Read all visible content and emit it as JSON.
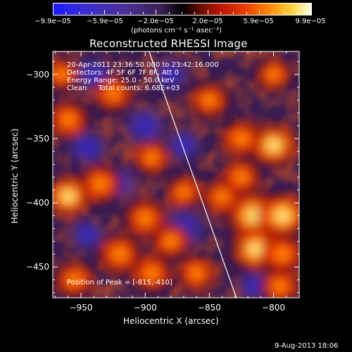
{
  "chart_data": {
    "type": "heatmap",
    "title": "Reconstructed RHESSI Image",
    "xlabel": "Heliocentric X (arcsec)",
    "ylabel": "Heliocentric Y (arcsec)",
    "xlim": [
      -972,
      -780
    ],
    "ylim": [
      -474,
      -282
    ],
    "x_ticks": [
      {
        "value": -950,
        "label": "−950"
      },
      {
        "value": -900,
        "label": "−900"
      },
      {
        "value": -850,
        "label": "−850"
      },
      {
        "value": -800,
        "label": "−800"
      }
    ],
    "y_ticks": [
      {
        "value": -300,
        "label": "−300"
      },
      {
        "value": -350,
        "label": "−350"
      },
      {
        "value": -400,
        "label": "−400"
      },
      {
        "value": -450,
        "label": "−450"
      }
    ],
    "colorbar": {
      "range": [
        -9.9e-05,
        9.9e-05
      ],
      "tick_labels": [
        "−9.9e−05",
        "−5.9e−05",
        "−2.0e−05",
        "2.0e−05",
        "5.9e−05",
        "9.9e−05"
      ],
      "tick_values": [
        -9.9e-05,
        -5.9e-05,
        -2e-05,
        2e-05,
        5.9e-05,
        9.9e-05
      ],
      "units": "(photons cm⁻² s⁻¹ asec⁻²)"
    },
    "annotations": {
      "time_range": "20-Apr-2011 23:36:50.000 to 23:42:16.000",
      "detectors": "Detectors: 4F 5F 6F 7F 8F, Att 0",
      "energy": "Energy Range: 25.0 - 50.0 keV",
      "method": "Clean     Total counts: 6.68E+03",
      "peak": "Position of Peak = [-815,-410]"
    },
    "limb_line": [
      [
        -897,
        -282
      ],
      [
        -829,
        -474
      ]
    ],
    "peak_position": [
      -815,
      -410
    ],
    "sources": [
      {
        "x": -815,
        "y": -410,
        "intensity": 9.9e-05
      },
      {
        "x": -793,
        "y": -410,
        "intensity": 8.5e-05
      },
      {
        "x": -814,
        "y": -436,
        "intensity": 8e-05
      },
      {
        "x": -800,
        "y": -355,
        "intensity": 7.5e-05
      },
      {
        "x": -825,
        "y": -350,
        "intensity": 5.5e-05
      },
      {
        "x": -850,
        "y": -320,
        "intensity": 5e-05
      },
      {
        "x": -840,
        "y": -395,
        "intensity": 5e-05
      },
      {
        "x": -825,
        "y": -380,
        "intensity": 5e-05
      },
      {
        "x": -793,
        "y": -440,
        "intensity": 6e-05
      },
      {
        "x": -795,
        "y": -465,
        "intensity": 5e-05
      },
      {
        "x": -960,
        "y": -395,
        "intensity": 7e-05
      },
      {
        "x": -935,
        "y": -385,
        "intensity": 6e-05
      },
      {
        "x": -960,
        "y": -335,
        "intensity": 5.5e-05
      },
      {
        "x": -925,
        "y": -315,
        "intensity": 5e-05
      },
      {
        "x": -900,
        "y": -412,
        "intensity": 6e-05
      },
      {
        "x": -920,
        "y": -440,
        "intensity": 6.5e-05
      },
      {
        "x": -895,
        "y": -455,
        "intensity": 5.5e-05
      },
      {
        "x": -880,
        "y": -430,
        "intensity": 5e-05
      },
      {
        "x": -860,
        "y": -455,
        "intensity": 5e-05
      },
      {
        "x": -955,
        "y": -460,
        "intensity": 5e-05
      },
      {
        "x": -895,
        "y": -365,
        "intensity": 4.5e-05
      },
      {
        "x": -870,
        "y": -392,
        "intensity": 4e-05
      },
      {
        "x": -965,
        "y": -300,
        "intensity": 4e-05
      },
      {
        "x": -800,
        "y": -300,
        "intensity": 4e-05
      },
      {
        "x": -900,
        "y": -340,
        "intensity": -6e-05
      },
      {
        "x": -870,
        "y": -420,
        "intensity": -7e-05
      },
      {
        "x": -945,
        "y": -357,
        "intensity": -5e-05
      },
      {
        "x": -945,
        "y": -425,
        "intensity": -4e-05
      },
      {
        "x": -870,
        "y": -355,
        "intensity": -4e-05
      },
      {
        "x": -920,
        "y": -385,
        "intensity": -4e-05
      },
      {
        "x": -940,
        "y": -300,
        "intensity": -4.5e-05
      },
      {
        "x": -880,
        "y": -300,
        "intensity": -4e-05
      },
      {
        "x": -815,
        "y": -465,
        "intensity": -3.5e-05
      }
    ]
  },
  "footer": {
    "date_stamp": "9-Aug-2013 18:06"
  }
}
